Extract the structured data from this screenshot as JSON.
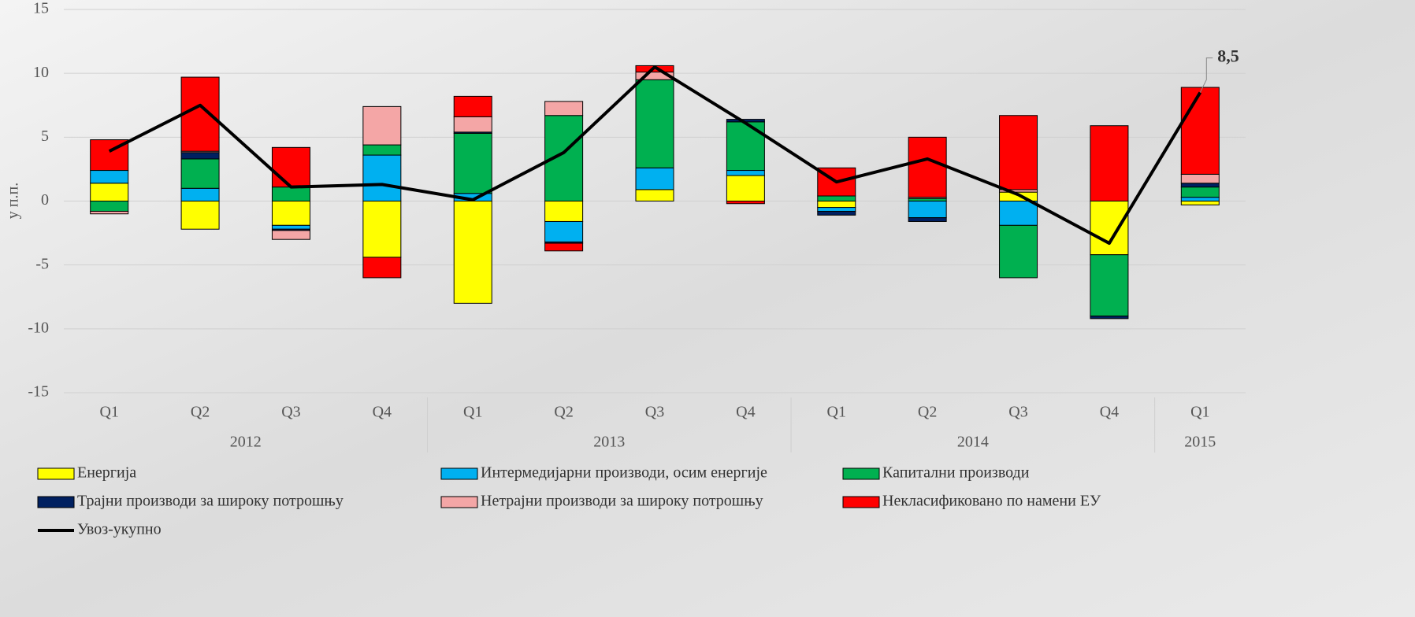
{
  "chart_data": {
    "type": "bar",
    "y_label": "у п.п.",
    "categories": [
      "Q1",
      "Q2",
      "Q3",
      "Q4",
      "Q1",
      "Q2",
      "Q3",
      "Q4",
      "Q1",
      "Q2",
      "Q3",
      "Q4",
      "Q1"
    ],
    "category_groups": [
      {
        "name": "2012",
        "count": 4
      },
      {
        "name": "2013",
        "count": 4
      },
      {
        "name": "2014",
        "count": 4
      },
      {
        "name": "2015",
        "count": 1
      }
    ],
    "ylim": [
      -15,
      15
    ],
    "yticks": [
      -15,
      -10,
      -5,
      0,
      5,
      10,
      15
    ],
    "grid": true,
    "series": [
      {
        "name": "Енергија",
        "color": "#ffff00",
        "values": [
          1.4,
          -2.2,
          -1.9,
          -4.4,
          -8.0,
          -1.6,
          0.9,
          2.0,
          -0.5,
          0,
          0.7,
          -4.2,
          -0.3
        ]
      },
      {
        "name": "Интермедијарни производи, осим енергије",
        "color": "#00b0f0",
        "values": [
          1.0,
          1.0,
          -0.3,
          3.6,
          0.6,
          -1.6,
          1.7,
          0.4,
          -0.3,
          -1.3,
          -1.9,
          0,
          0.3
        ]
      },
      {
        "name": "Капитални производи",
        "color": "#00b050",
        "values": [
          -0.8,
          2.3,
          1.1,
          0.8,
          4.7,
          6.7,
          6.9,
          3.8,
          0.4,
          0.2,
          -4.1,
          -4.8,
          0.8
        ]
      },
      {
        "name": "Трајни производи за широку потрошњу",
        "color": "#002060",
        "values": [
          0,
          0.5,
          -0.1,
          0,
          0.1,
          -0.1,
          0,
          0.2,
          -0.3,
          -0.3,
          0,
          -0.2,
          0.3
        ]
      },
      {
        "name": "Нетрајни производи за широку потрошњу",
        "color": "#f4a6a6",
        "values": [
          -0.2,
          0.1,
          -0.7,
          3.0,
          1.2,
          1.1,
          0.6,
          0,
          0,
          0.1,
          0.2,
          0,
          0.7
        ]
      },
      {
        "name": "Некласификовано по намени ЕУ",
        "color": "#ff0000",
        "values": [
          2.4,
          5.8,
          3.1,
          -1.6,
          1.6,
          -0.6,
          0.5,
          -0.2,
          2.2,
          4.7,
          5.8,
          5.9,
          6.8
        ]
      },
      {
        "name": "Увоз-укупно",
        "color": "#000000",
        "type": "line",
        "values": [
          3.9,
          7.5,
          1.1,
          1.3,
          0.1,
          3.8,
          10.5,
          6.1,
          1.5,
          3.3,
          0.5,
          -3.3,
          8.5
        ],
        "value_labels": [
          null,
          null,
          null,
          null,
          null,
          null,
          null,
          null,
          null,
          null,
          null,
          null,
          "8,5"
        ]
      }
    ]
  }
}
